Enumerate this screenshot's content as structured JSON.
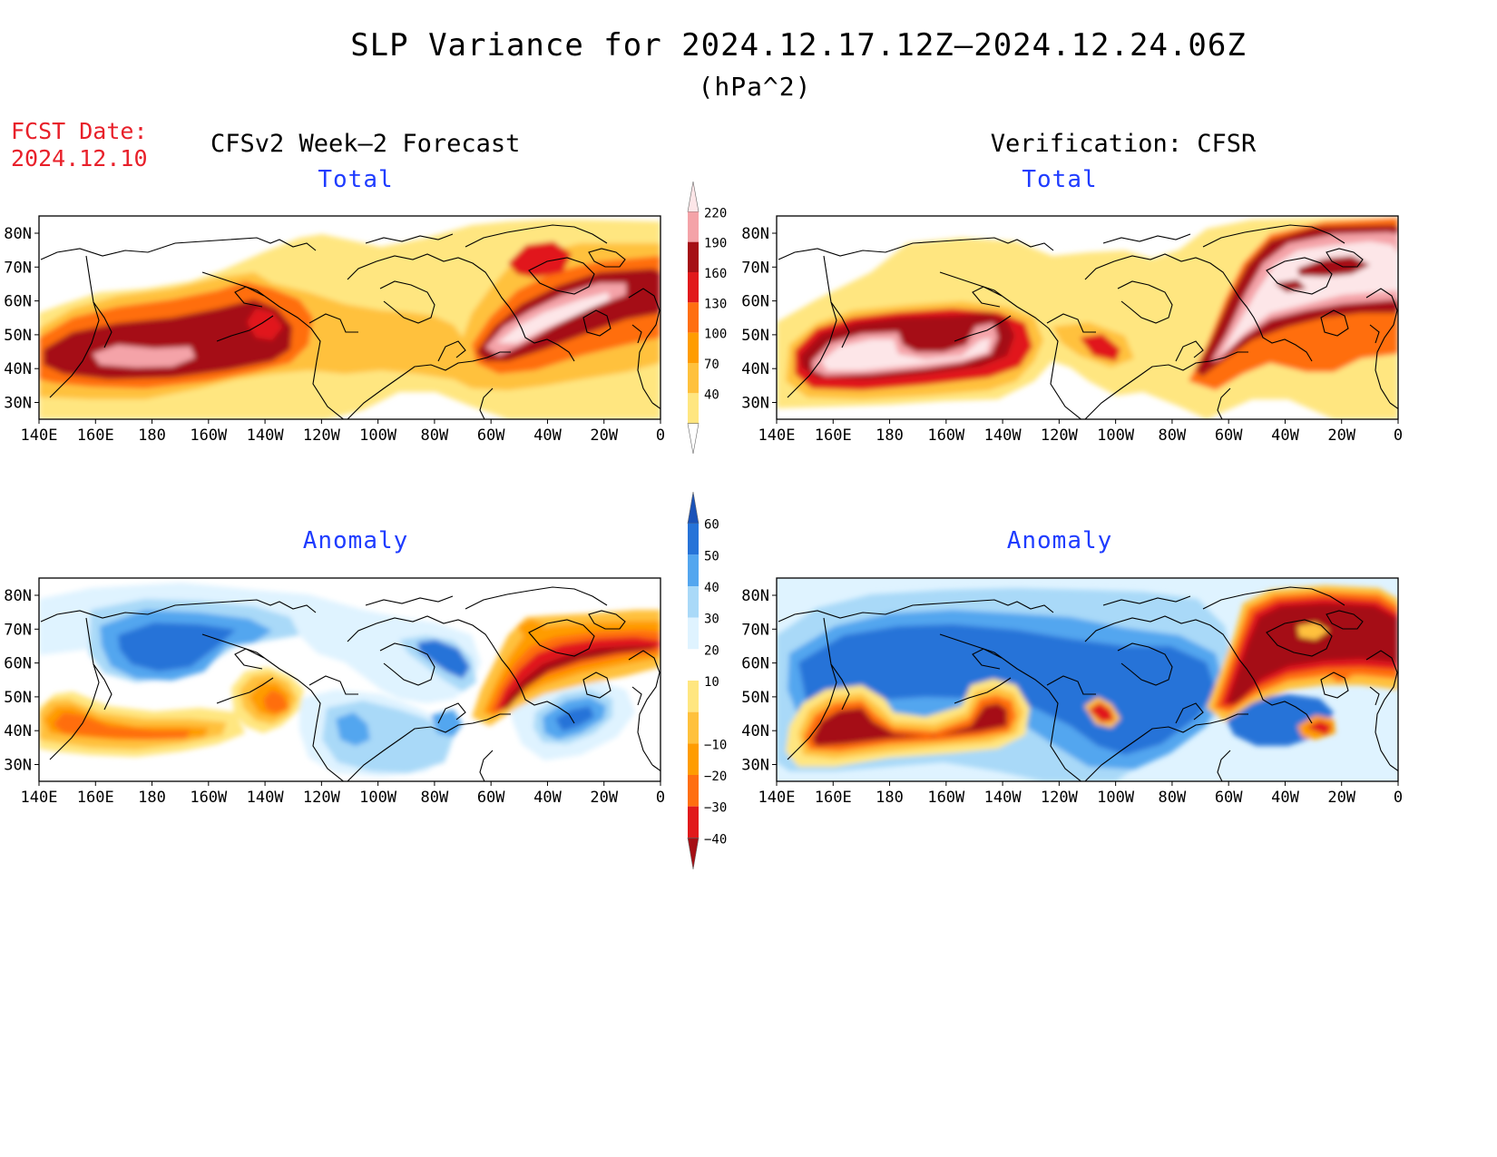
{
  "title": "SLP Variance for 2024.12.17.12Z–2024.12.24.06Z",
  "units": "(hPa^2)",
  "fcst_date": {
    "label": "FCST Date:",
    "value": "2024.12.10"
  },
  "columns": {
    "left": "CFSv2 Week–2 Forecast",
    "right": "Verification: CFSR"
  },
  "panels": [
    {
      "id": "forecast-total",
      "subtitle": "Total",
      "field": "total",
      "source": "forecast"
    },
    {
      "id": "verification-total",
      "subtitle": "Total",
      "field": "total",
      "source": "verification"
    },
    {
      "id": "forecast-anomaly",
      "subtitle": "Anomaly",
      "field": "anomaly",
      "source": "forecast"
    },
    {
      "id": "verification-anomaly",
      "subtitle": "Anomaly",
      "field": "anomaly",
      "source": "verification"
    }
  ],
  "axes": {
    "x_ticks": [
      "140E",
      "160E",
      "180",
      "160W",
      "140W",
      "120W",
      "100W",
      "80W",
      "60W",
      "40W",
      "20W",
      "0"
    ],
    "y_ticks": [
      "80N",
      "70N",
      "60N",
      "50N",
      "40N",
      "30N"
    ]
  },
  "colorbars": {
    "total": {
      "levels": [
        "40",
        "70",
        "100",
        "130",
        "160",
        "190",
        "220"
      ],
      "colors": [
        "#ffffff",
        "#ffe680",
        "#ffc13c",
        "#ff9c00",
        "#ff6e10",
        "#e1191b",
        "#a50f15",
        "#f4a3a8",
        "#fde6e8"
      ]
    },
    "anomaly": {
      "levels": [
        "60",
        "50",
        "40",
        "30",
        "20",
        "10",
        "−10",
        "−20",
        "−30",
        "−40"
      ],
      "colors": [
        "#a50f15",
        "#e1191b",
        "#ff6e10",
        "#ff9c00",
        "#ffc13c",
        "#ffe680",
        "#ffffff",
        "#dff3ff",
        "#a9d9f8",
        "#53a6ef",
        "#2673d8",
        "#1a52b8"
      ]
    }
  }
}
